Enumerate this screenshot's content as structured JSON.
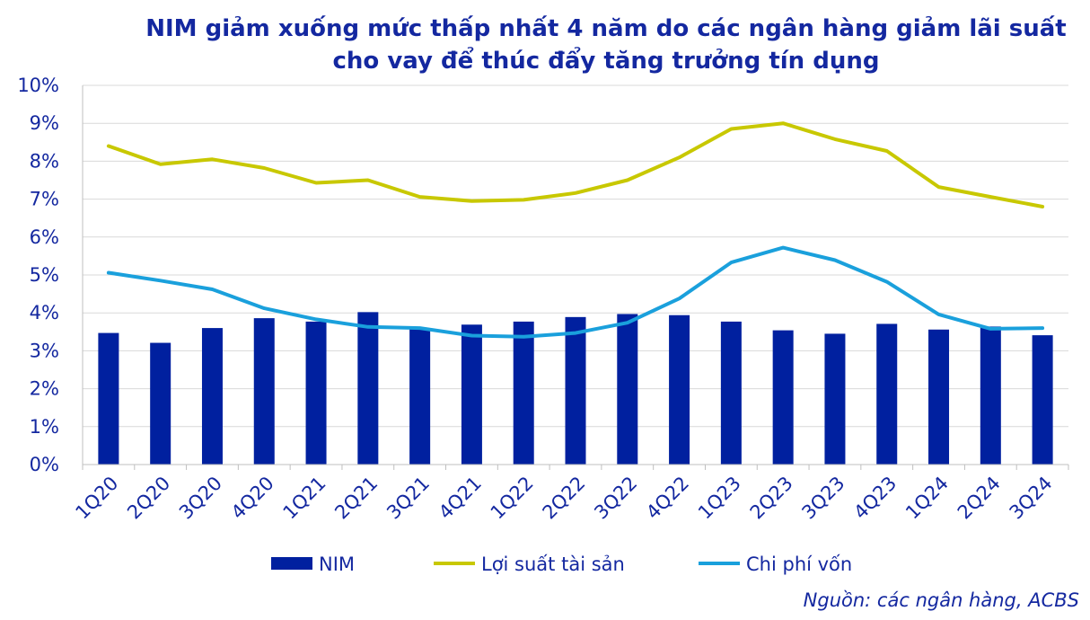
{
  "chart_data": {
    "type": "bar",
    "title_line1": "NIM giảm xuống mức thấp nhất 4 năm do các ngân hàng giảm lãi suất",
    "title_line2": "cho vay để thúc đẩy tăng trưởng tín dụng",
    "categories": [
      "1Q20",
      "2Q20",
      "3Q20",
      "4Q20",
      "1Q21",
      "2Q21",
      "3Q21",
      "4Q21",
      "1Q22",
      "2Q22",
      "3Q22",
      "4Q22",
      "1Q23",
      "2Q23",
      "3Q23",
      "4Q23",
      "1Q24",
      "2Q24",
      "3Q24"
    ],
    "y_ticks": [
      "0%",
      "1%",
      "2%",
      "3%",
      "4%",
      "5%",
      "6%",
      "7%",
      "8%",
      "9%",
      "10%"
    ],
    "ylim": [
      0,
      10
    ],
    "series": [
      {
        "name": "NIM",
        "kind": "bar",
        "color": "#00209f",
        "values": [
          3.47,
          3.21,
          3.6,
          3.86,
          3.77,
          4.02,
          3.6,
          3.69,
          3.77,
          3.89,
          3.97,
          3.94,
          3.77,
          3.54,
          3.45,
          3.71,
          3.56,
          3.64,
          3.41
        ]
      },
      {
        "name": "Lợi suất tài sản",
        "kind": "line",
        "color": "#c8c800",
        "values": [
          8.4,
          7.92,
          8.05,
          7.82,
          7.43,
          7.5,
          7.06,
          6.95,
          6.98,
          7.16,
          7.5,
          8.1,
          8.85,
          9.0,
          8.58,
          8.27,
          7.32,
          7.06,
          6.8
        ]
      },
      {
        "name": "Chi phí vốn",
        "kind": "line",
        "color": "#1aa0dc",
        "values": [
          5.06,
          4.85,
          4.62,
          4.12,
          3.83,
          3.63,
          3.6,
          3.4,
          3.37,
          3.47,
          3.74,
          4.38,
          5.33,
          5.72,
          5.39,
          4.82,
          3.96,
          3.58,
          3.6
        ]
      }
    ],
    "grid": "horizontal",
    "legend": "bottom"
  },
  "source": "Nguồn: các ngân hàng, ACBS"
}
